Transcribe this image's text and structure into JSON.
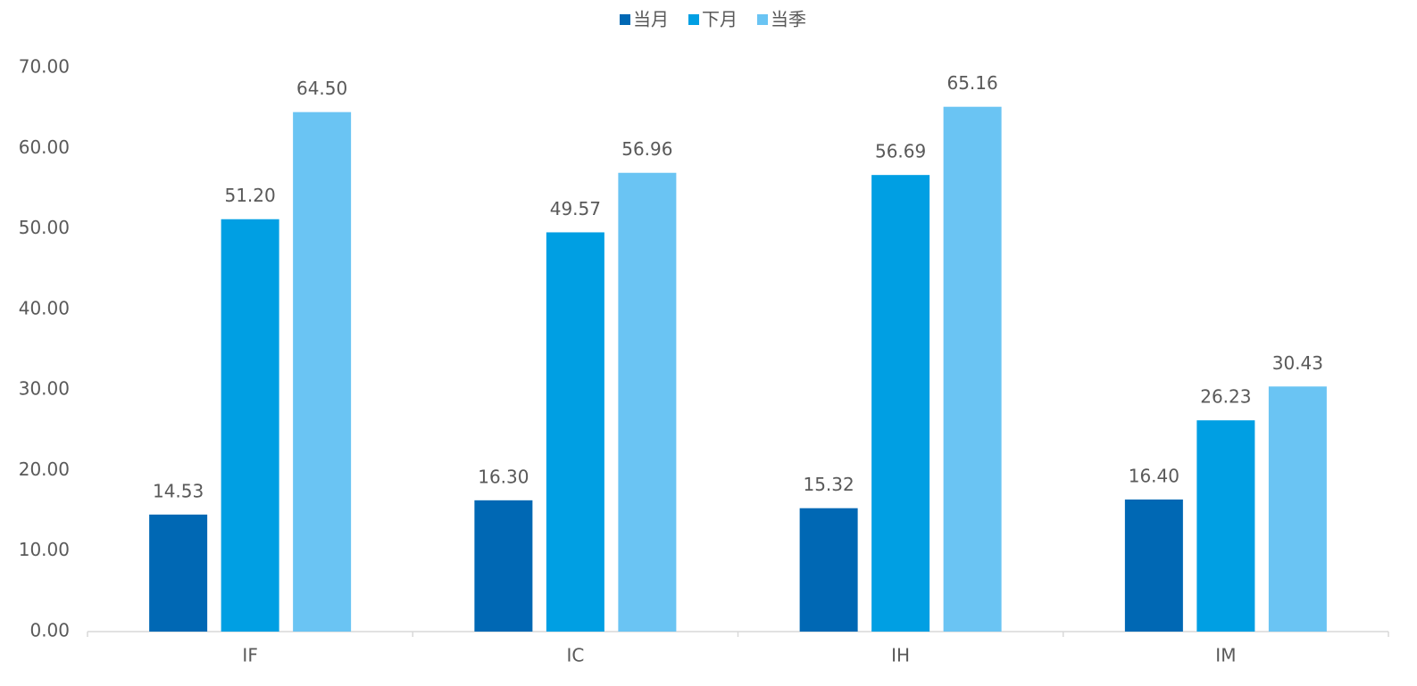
{
  "chart_data": {
    "type": "bar",
    "categories": [
      "IF",
      "IC",
      "IH",
      "IM"
    ],
    "series": [
      {
        "name": "当月",
        "color": "#0068b4",
        "values": [
          14.53,
          16.3,
          15.32,
          16.4
        ],
        "value_labels": [
          "14.53",
          "16.30",
          "15.32",
          "16.40"
        ]
      },
      {
        "name": "下月",
        "color": "#009fe3",
        "values": [
          51.2,
          49.57,
          56.69,
          26.23
        ],
        "value_labels": [
          "51.20",
          "49.57",
          "56.69",
          "26.23"
        ]
      },
      {
        "name": "当季",
        "color": "#6ac4f3",
        "values": [
          64.5,
          56.96,
          65.16,
          30.43
        ],
        "value_labels": [
          "64.50",
          "56.96",
          "65.16",
          "30.43"
        ]
      }
    ],
    "ylim": [
      0,
      70
    ],
    "yticks": [
      {
        "value": 0,
        "label": "0.00"
      },
      {
        "value": 10,
        "label": "10.00"
      },
      {
        "value": 20,
        "label": "20.00"
      },
      {
        "value": 30,
        "label": "30.00"
      },
      {
        "value": 40,
        "label": "40.00"
      },
      {
        "value": 50,
        "label": "50.00"
      },
      {
        "value": 60,
        "label": "60.00"
      },
      {
        "value": 70,
        "label": "70.00"
      }
    ],
    "grid": false,
    "legend": "top"
  }
}
